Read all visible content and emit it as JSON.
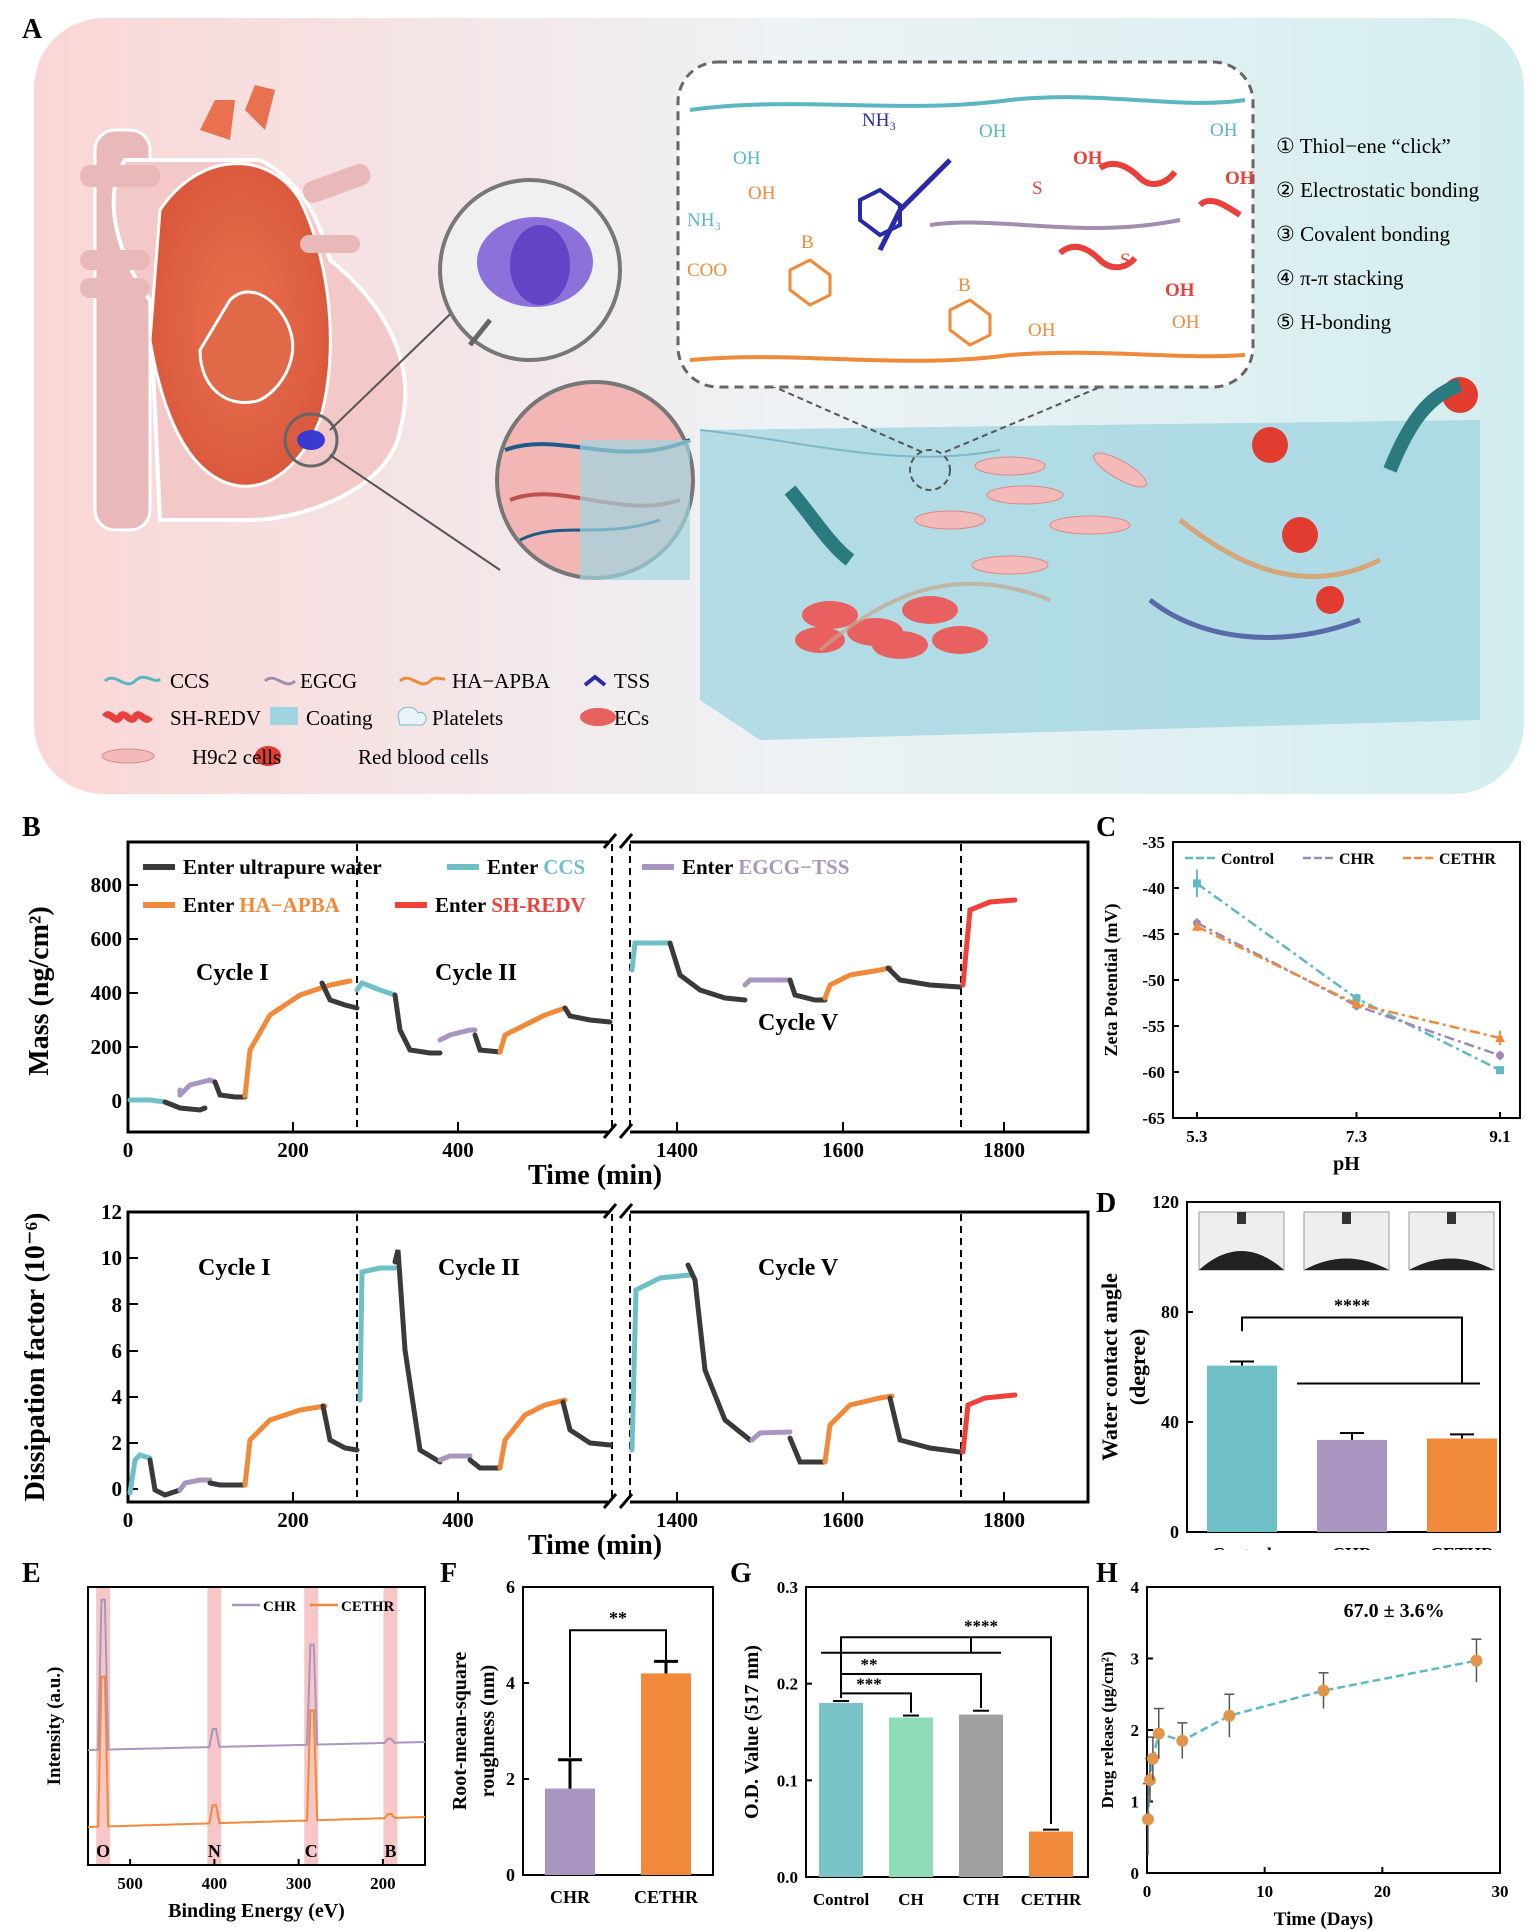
{
  "panel_labels": {
    "A": "A",
    "B": "B",
    "C": "C",
    "D": "D",
    "E": "E",
    "F": "F",
    "G": "G",
    "H": "H"
  },
  "panelA": {
    "interactions": [
      "① Thiol−ene “click”",
      "② Electrostatic bonding",
      "③ Covalent bonding",
      "④ π-π stacking",
      "⑤ H-bonding"
    ],
    "legend": {
      "CCS": "CCS",
      "EGCG": "EGCG",
      "HA": "HA−APBA",
      "TSS": "TSS",
      "SH": "SH-REDV",
      "Coating": "Coating",
      "Platelets": "Platelets",
      "ECs": "ECs",
      "H9c2": "H9c2 cells",
      "RBC": "Red blood cells"
    },
    "chem": {
      "NH3": "NH₃",
      "COO": "COO",
      "OH": "OH",
      "S": "S",
      "B": "B",
      "O": "O"
    },
    "colors": {
      "CCS": "#5bb7bf",
      "EGCG": "#a08db0",
      "HA": "#ee8a3a",
      "TSS": "#2a2aa8",
      "SH": "#e8403a"
    }
  },
  "panelB": {
    "ylabel_mass": "Mass (ng/cm²)",
    "ylabel_diss": "Dissipation factor (10⁻⁶)",
    "xlabel": "Time (min)",
    "legend": {
      "water": "Enter ultrapure water",
      "ccs_pre": "Enter ",
      "ccs": "CCS",
      "egcg_pre": "Enter ",
      "egcg": "EGCG−TSS",
      "ha_pre": "Enter ",
      "ha": "HA−APBA",
      "sh_pre": "Enter ",
      "sh": "SH-REDV"
    },
    "cycles": {
      "c1": "Cycle I",
      "c2": "Cycle II",
      "c5": "Cycle V"
    },
    "mass_yticks": [
      "800",
      "600",
      "400",
      "200",
      "0"
    ],
    "diss_yticks": [
      "12",
      "10",
      "8",
      "6",
      "4",
      "2",
      "0"
    ],
    "xticks": [
      "0",
      "200",
      "400",
      "1400",
      "1600",
      "1800"
    ],
    "colors": {
      "water": "#3a3a3a",
      "ccs": "#6ec0c6",
      "egcg": "#a896c0",
      "ha": "#f08a3a",
      "sh": "#f0403a"
    }
  },
  "chart_data": [
    {
      "panel": "C",
      "type": "line",
      "xlabel": "pH",
      "ylabel": "Zeta Potential (mV)",
      "x": [
        5.3,
        7.3,
        9.1
      ],
      "xticks": [
        "5.3",
        "7.3",
        "9.1"
      ],
      "yticks": [
        "-35",
        "-40",
        "-45",
        "-50",
        "-55",
        "-60",
        "-65"
      ],
      "ylim": [
        -65,
        -35
      ],
      "series": [
        {
          "name": "Control",
          "values": [
            -39.5,
            -52.0,
            -59.8
          ],
          "err": [
            1.5,
            0.5,
            0.4
          ],
          "color": "#5fb9c2",
          "marker": "square"
        },
        {
          "name": "CHR",
          "values": [
            -43.8,
            -52.8,
            -58.2
          ],
          "err": [
            0.5,
            0.5,
            0.5
          ],
          "color": "#9c8ab4",
          "marker": "circle"
        },
        {
          "name": "CETHR",
          "values": [
            -44.2,
            -52.6,
            -56.3
          ],
          "err": [
            0.5,
            0.5,
            0.8
          ],
          "color": "#ee8a3a",
          "marker": "triangle"
        }
      ]
    },
    {
      "panel": "D",
      "type": "bar",
      "ylabel": "Water contact angle (degree)",
      "categories": [
        "Control",
        "CHR",
        "CETHR"
      ],
      "values": [
        60.5,
        33.5,
        34.0
      ],
      "err": [
        1.5,
        2.5,
        1.5
      ],
      "colors": [
        "#6ec0c6",
        "#a896c0",
        "#f08a3a"
      ],
      "ylim": [
        0,
        120
      ],
      "yticks": [
        "120",
        "80",
        "40",
        "0"
      ],
      "sig": "****"
    },
    {
      "panel": "E",
      "type": "line",
      "xlabel": "Binding Energy (eV)",
      "ylabel": "Intensity (a.u.)",
      "xticks": [
        "500",
        "400",
        "300",
        "200"
      ],
      "peaks": [
        "O",
        "N",
        "C",
        "B"
      ],
      "series": [
        {
          "name": "CHR",
          "color": "#a896c0"
        },
        {
          "name": "CETHR",
          "color": "#f08a3a"
        }
      ]
    },
    {
      "panel": "F",
      "type": "bar",
      "ylabel": "Root-mean-square roughness (nm)",
      "categories": [
        "CHR",
        "CETHR"
      ],
      "values": [
        1.8,
        4.2
      ],
      "err": [
        0.6,
        0.25
      ],
      "colors": [
        "#a896c0",
        "#f08a3a"
      ],
      "ylim": [
        0,
        6
      ],
      "yticks": [
        "6",
        "4",
        "2",
        "0"
      ],
      "sig": "**"
    },
    {
      "panel": "G",
      "type": "bar",
      "ylabel": "O.D. Value (517 nm)",
      "categories": [
        "Control",
        "CH",
        "CTH",
        "CETHR"
      ],
      "values": [
        0.18,
        0.165,
        0.168,
        0.047
      ],
      "err": [
        0.002,
        0.002,
        0.004,
        0.002
      ],
      "colors": [
        "#7ac4c7",
        "#8fdcb8",
        "#a0a0a0",
        "#f08a3a"
      ],
      "ylim": [
        0,
        0.3
      ],
      "yticks": [
        "0.3",
        "0.2",
        "0.1",
        "0.0"
      ],
      "sig": [
        "****",
        "**",
        "***"
      ]
    },
    {
      "panel": "H",
      "type": "scatter",
      "xlabel": "Time (Days)",
      "ylabel": "Drug release (μg/cm²)",
      "x": [
        0.083,
        0.25,
        0.5,
        1,
        3,
        7,
        15,
        28
      ],
      "values": [
        0.75,
        1.3,
        1.6,
        1.95,
        1.85,
        2.2,
        2.55,
        2.97
      ],
      "err": [
        0.5,
        0.3,
        0.3,
        0.35,
        0.25,
        0.3,
        0.25,
        0.3
      ],
      "xticks": [
        "0",
        "10",
        "20",
        "30"
      ],
      "yticks": [
        "4",
        "3",
        "2",
        "1",
        "0"
      ],
      "xlim": [
        0,
        30
      ],
      "ylim": [
        0,
        4
      ],
      "annotation": "67.0 ± 3.6%",
      "color": "#5fb9c2",
      "marker_color": "#e0954a"
    }
  ]
}
